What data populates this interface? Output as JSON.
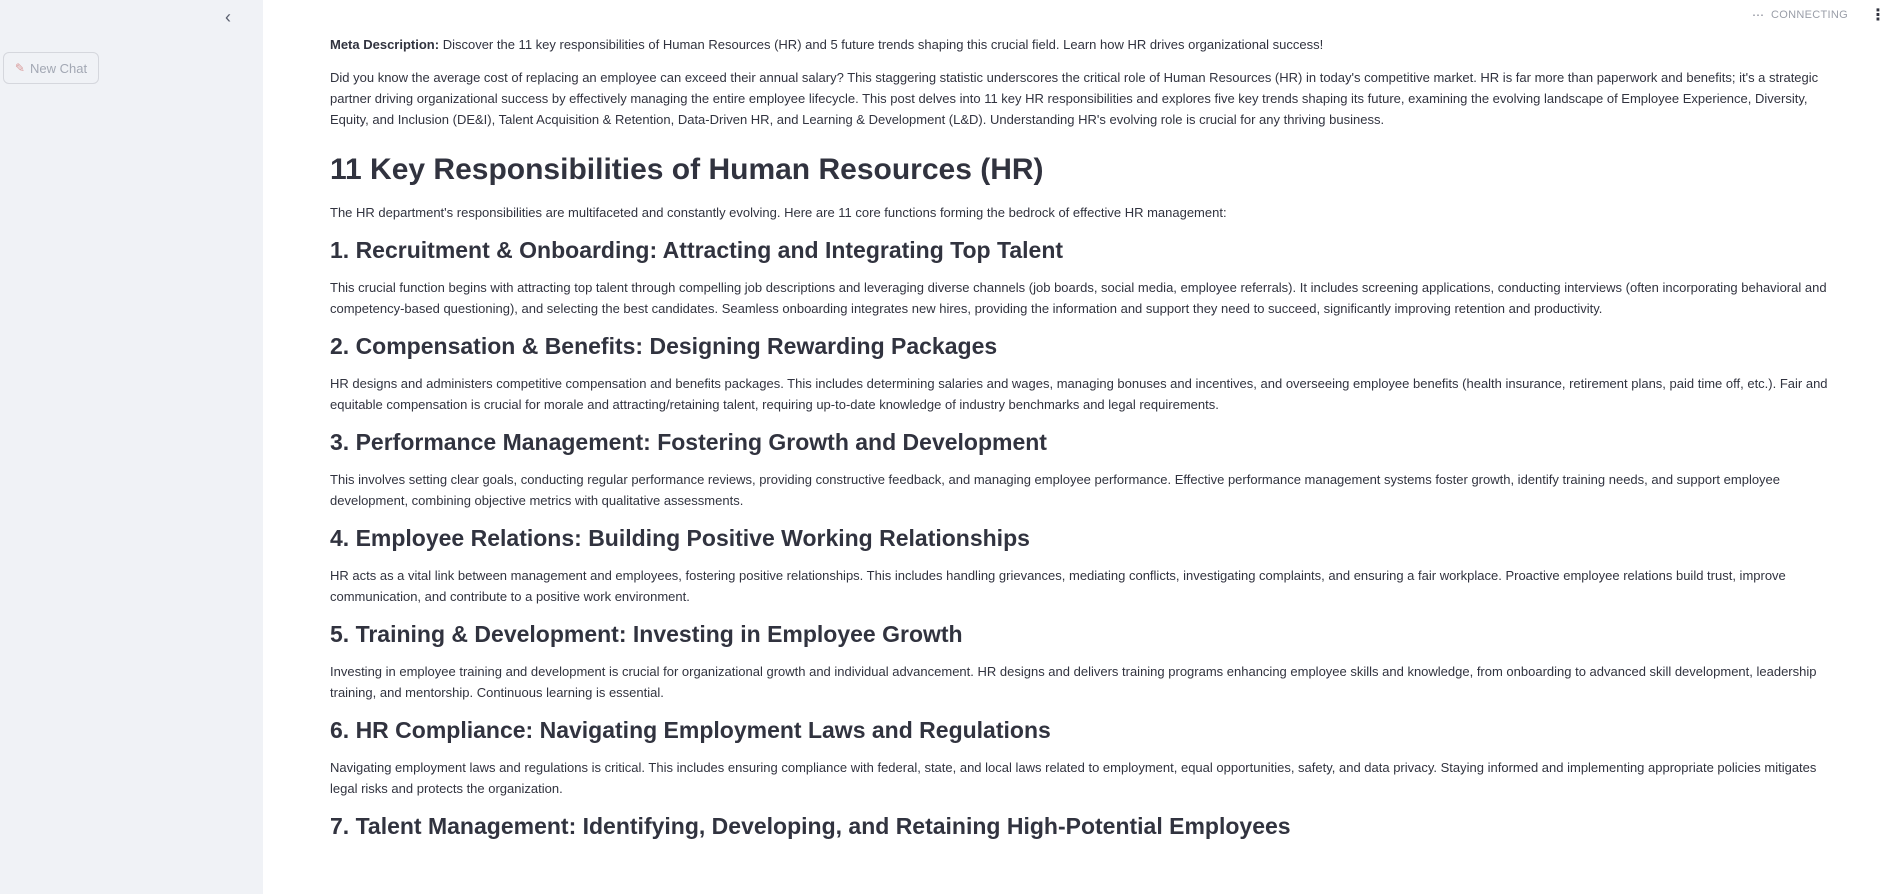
{
  "sidebar": {
    "collapse_icon": "chevron-left-icon",
    "new_chat_label": "New Chat",
    "new_chat_icon": "edit-icon"
  },
  "header": {
    "status_text": "CONNECTING",
    "menu_icon": "vertical-ellipsis-icon"
  },
  "article": {
    "meta_label": "Meta Description:",
    "meta_text": " Discover the 11 key responsibilities of Human Resources (HR) and 5 future trends shaping this crucial field. Learn how HR drives organizational success!",
    "intro": "Did you know the average cost of replacing an employee can exceed their annual salary? This staggering statistic underscores the critical role of Human Resources (HR) in today's competitive market. HR is far more than paperwork and benefits; it's a strategic partner driving organizational success by effectively managing the entire employee lifecycle. This post delves into 11 key HR responsibilities and explores five key trends shaping its future, examining the evolving landscape of Employee Experience, Diversity, Equity, and Inclusion (DE&I), Talent Acquisition & Retention, Data-Driven HR, and Learning & Development (L&D). Understanding HR's evolving role is crucial for any thriving business.",
    "main_heading": "11 Key Responsibilities of Human Resources (HR)",
    "main_intro": "The HR department's responsibilities are multifaceted and constantly evolving. Here are 11 core functions forming the bedrock of effective HR management:",
    "sections": [
      {
        "heading": "1. Recruitment & Onboarding: Attracting and Integrating Top Talent",
        "body": "This crucial function begins with attracting top talent through compelling job descriptions and leveraging diverse channels (job boards, social media, employee referrals). It includes screening applications, conducting interviews (often incorporating behavioral and competency-based questioning), and selecting the best candidates. Seamless onboarding integrates new hires, providing the information and support they need to succeed, significantly improving retention and productivity."
      },
      {
        "heading": "2. Compensation & Benefits: Designing Rewarding Packages",
        "body": "HR designs and administers competitive compensation and benefits packages. This includes determining salaries and wages, managing bonuses and incentives, and overseeing employee benefits (health insurance, retirement plans, paid time off, etc.). Fair and equitable compensation is crucial for morale and attracting/retaining talent, requiring up-to-date knowledge of industry benchmarks and legal requirements."
      },
      {
        "heading": "3. Performance Management: Fostering Growth and Development",
        "body": "This involves setting clear goals, conducting regular performance reviews, providing constructive feedback, and managing employee performance. Effective performance management systems foster growth, identify training needs, and support employee development, combining objective metrics with qualitative assessments."
      },
      {
        "heading": "4. Employee Relations: Building Positive Working Relationships",
        "body": "HR acts as a vital link between management and employees, fostering positive relationships. This includes handling grievances, mediating conflicts, investigating complaints, and ensuring a fair workplace. Proactive employee relations build trust, improve communication, and contribute to a positive work environment."
      },
      {
        "heading": "5. Training & Development: Investing in Employee Growth",
        "body": "Investing in employee training and development is crucial for organizational growth and individual advancement. HR designs and delivers training programs enhancing employee skills and knowledge, from onboarding to advanced skill development, leadership training, and mentorship. Continuous learning is essential."
      },
      {
        "heading": "6. HR Compliance: Navigating Employment Laws and Regulations",
        "body": "Navigating employment laws and regulations is critical. This includes ensuring compliance with federal, state, and local laws related to employment, equal opportunities, safety, and data privacy. Staying informed and implementing appropriate policies mitigates legal risks and protects the organization."
      },
      {
        "heading": "7. Talent Management: Identifying, Developing, and Retaining High-Potential Employees",
        "body": ""
      }
    ]
  }
}
